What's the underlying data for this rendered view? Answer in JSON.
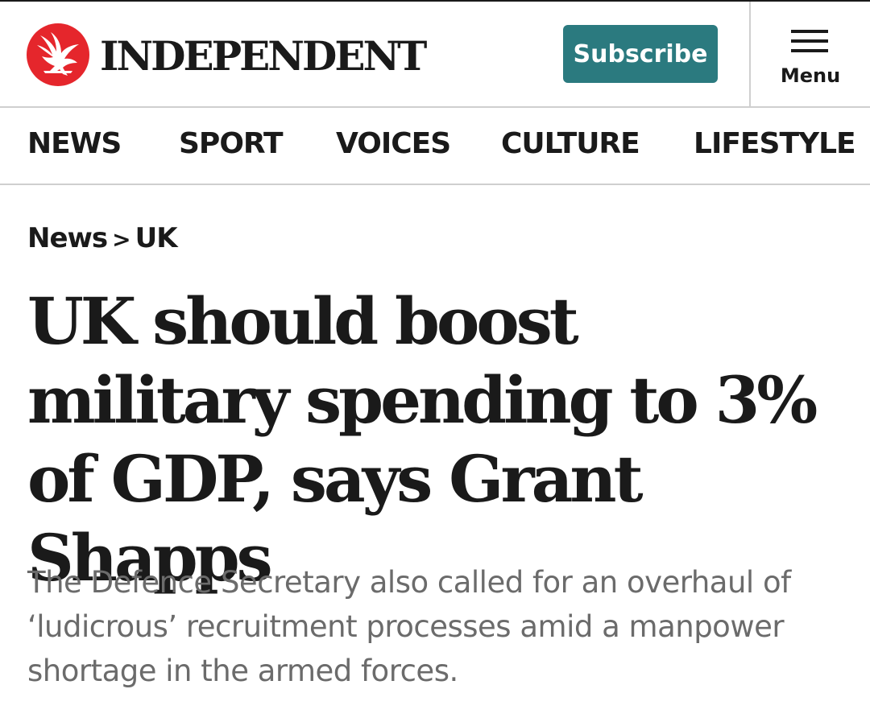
{
  "header": {
    "logo_text": "INDEPENDENT",
    "logo_icon": "eagle-icon",
    "subscribe_label": "Subscribe",
    "menu_label": "Menu",
    "menu_icon": "hamburger-icon"
  },
  "nav": {
    "items": [
      {
        "label": "NEWS"
      },
      {
        "label": "SPORT"
      },
      {
        "label": "VOICES"
      },
      {
        "label": "CULTURE"
      },
      {
        "label": "LIFESTYLE"
      }
    ]
  },
  "breadcrumb": {
    "section": "News",
    "separator": ">",
    "subsection": "UK"
  },
  "article": {
    "headline": "UK should boost military spending to 3% of GDP, says Grant Shapps",
    "standfirst": "The Defence Secretary also called for an overhaul of ‘ludicrous’ recruitment processes amid a manpower shortage in the armed forces."
  },
  "colors": {
    "brand_red": "#e5262c",
    "subscribe_teal": "#2b7a7f",
    "text": "#1a1a1a",
    "standfirst_grey": "#6b6b6b",
    "divider": "#cfcfcf"
  }
}
